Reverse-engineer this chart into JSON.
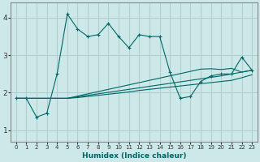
{
  "xlabel": "Humidex (Indice chaleur)",
  "ylabel": "",
  "bg_color": "#cce8e8",
  "grid_color": "#b0d0d0",
  "line_color": "#006666",
  "xlim": [
    -0.5,
    23.5
  ],
  "ylim": [
    0.7,
    4.4
  ],
  "xticks": [
    0,
    1,
    2,
    3,
    4,
    5,
    6,
    7,
    8,
    9,
    10,
    11,
    12,
    13,
    14,
    15,
    16,
    17,
    18,
    19,
    20,
    21,
    22,
    23
  ],
  "yticks": [
    1,
    2,
    3,
    4
  ],
  "series": [
    {
      "x": [
        0,
        1,
        2,
        3,
        4,
        5,
        6,
        7,
        8,
        9,
        10,
        11,
        12,
        13,
        14,
        15,
        16,
        17,
        18,
        19,
        20,
        21,
        22,
        23
      ],
      "y": [
        1.85,
        1.85,
        1.85,
        1.85,
        1.85,
        1.85,
        1.87,
        1.9,
        1.93,
        1.96,
        1.99,
        2.02,
        2.06,
        2.09,
        2.12,
        2.15,
        2.18,
        2.21,
        2.24,
        2.27,
        2.3,
        2.33,
        2.4,
        2.48
      ],
      "marker": false
    },
    {
      "x": [
        0,
        1,
        2,
        3,
        4,
        5,
        6,
        7,
        8,
        9,
        10,
        11,
        12,
        13,
        14,
        15,
        16,
        17,
        18,
        19,
        20,
        21,
        22,
        23
      ],
      "y": [
        1.85,
        1.85,
        1.85,
        1.85,
        1.85,
        1.85,
        1.89,
        1.93,
        1.97,
        2.01,
        2.05,
        2.09,
        2.13,
        2.17,
        2.21,
        2.25,
        2.29,
        2.33,
        2.37,
        2.41,
        2.45,
        2.5,
        2.55,
        2.6
      ],
      "marker": false
    },
    {
      "x": [
        0,
        1,
        2,
        3,
        4,
        5,
        6,
        7,
        8,
        9,
        10,
        11,
        12,
        13,
        14,
        15,
        16,
        17,
        18,
        19,
        20,
        21,
        22,
        23
      ],
      "y": [
        1.85,
        1.85,
        1.85,
        1.85,
        1.85,
        1.85,
        1.91,
        1.97,
        2.03,
        2.09,
        2.15,
        2.21,
        2.27,
        2.33,
        2.39,
        2.45,
        2.51,
        2.57,
        2.63,
        2.64,
        2.62,
        2.65,
        2.55,
        2.6
      ],
      "marker": false
    },
    {
      "x": [
        0,
        1,
        2,
        3,
        4,
        5,
        6,
        7,
        8,
        9,
        10,
        11,
        12,
        13,
        14,
        15,
        16,
        17,
        18,
        19,
        20,
        21,
        22,
        23
      ],
      "y": [
        1.85,
        1.85,
        1.35,
        1.45,
        2.5,
        4.1,
        3.7,
        3.5,
        3.55,
        3.85,
        3.5,
        3.2,
        3.55,
        3.5,
        3.5,
        2.55,
        1.85,
        1.9,
        2.3,
        2.45,
        2.5,
        2.5,
        2.95,
        2.6
      ],
      "marker": true
    }
  ]
}
